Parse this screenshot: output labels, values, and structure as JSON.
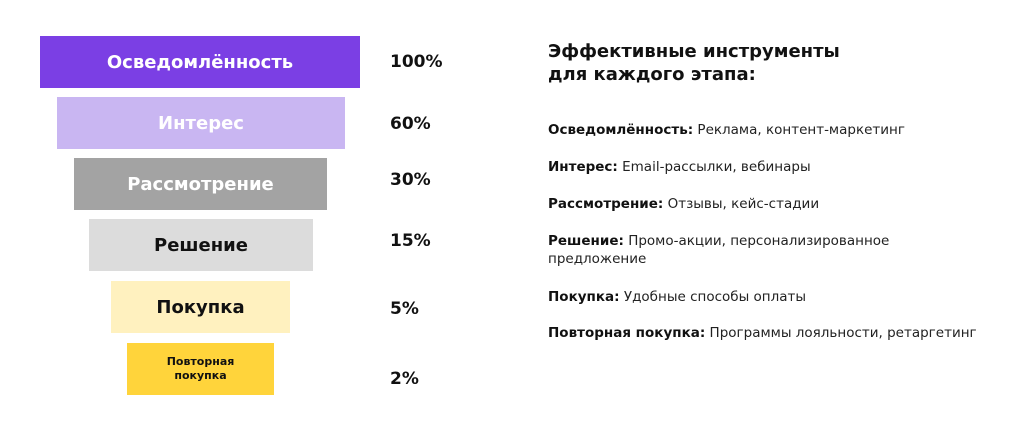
{
  "funnel": {
    "stages": [
      {
        "label": "Осведомлённость",
        "percent": "100%",
        "color": "#7B3FE4",
        "text_color": "#ffffff"
      },
      {
        "label": "Интерес",
        "percent": "60%",
        "color": "#C9B6F2",
        "text_color": "#ffffff"
      },
      {
        "label": "Рассмотрение",
        "percent": "30%",
        "color": "#A3A3A3",
        "text_color": "#ffffff"
      },
      {
        "label": "Решение",
        "percent": "15%",
        "color": "#DCDCDC",
        "text_color": "#111111"
      },
      {
        "label": "Покупка",
        "percent": "5%",
        "color": "#FFF1BF",
        "text_color": "#111111"
      },
      {
        "label": "Повторная покупка",
        "percent": "2%",
        "color": "#FFD43B",
        "text_color": "#111111"
      }
    ]
  },
  "tools": {
    "title_line1": "Эффективные инструменты",
    "title_line2": "для каждого этапа:",
    "items": [
      {
        "term": "Осведомлённость:",
        "text": "Реклама, контент-маркетинг"
      },
      {
        "term": "Интерес:",
        "text": "Email-рассылки, вебинары"
      },
      {
        "term": "Рассмотрение:",
        "text": "Отзывы, кейс-стадии"
      },
      {
        "term": "Решение:",
        "text": "Промо-акции, персонализированное предложение"
      },
      {
        "term": "Покупка:",
        "text": "Удобные способы оплаты"
      },
      {
        "term": "Повторная покупка:",
        "text": "Программы лояльности, ретаргетинг"
      }
    ]
  }
}
